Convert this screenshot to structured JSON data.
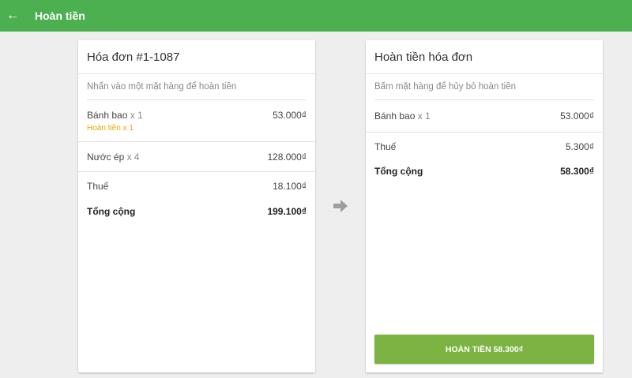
{
  "header": {
    "title": "Hoàn tiền",
    "back_icon": "arrow-left-icon"
  },
  "invoice": {
    "title": "Hóa đơn #1-1087",
    "hint": "Nhấn vào một mặt hàng để hoàn tiền",
    "items": [
      {
        "name": "Bánh bao",
        "qty": "x 1",
        "price": "53.000₫",
        "refund": "Hoàn tiền x 1"
      },
      {
        "name": "Nước ép",
        "qty": "x 4",
        "price": "128.000₫"
      }
    ],
    "tax_label": "Thuế",
    "tax": "18.100₫",
    "total_label": "Tổng cộng",
    "total": "199.100₫"
  },
  "refund": {
    "title": "Hoàn tiền hóa đơn",
    "hint": "Bấm mặt hàng để hủy bỏ hoàn tiền",
    "items": [
      {
        "name": "Bánh bao",
        "qty": "x 1",
        "price": "53.000₫"
      }
    ],
    "tax_label": "Thuế",
    "tax": "5.300₫",
    "total_label": "Tổng cộng",
    "total": "58.300₫",
    "button": "HOÀN TIỀN 58.300₫"
  },
  "colors": {
    "primary": "#4caf50",
    "button": "#7cb342",
    "refund_text": "#f0a500"
  }
}
